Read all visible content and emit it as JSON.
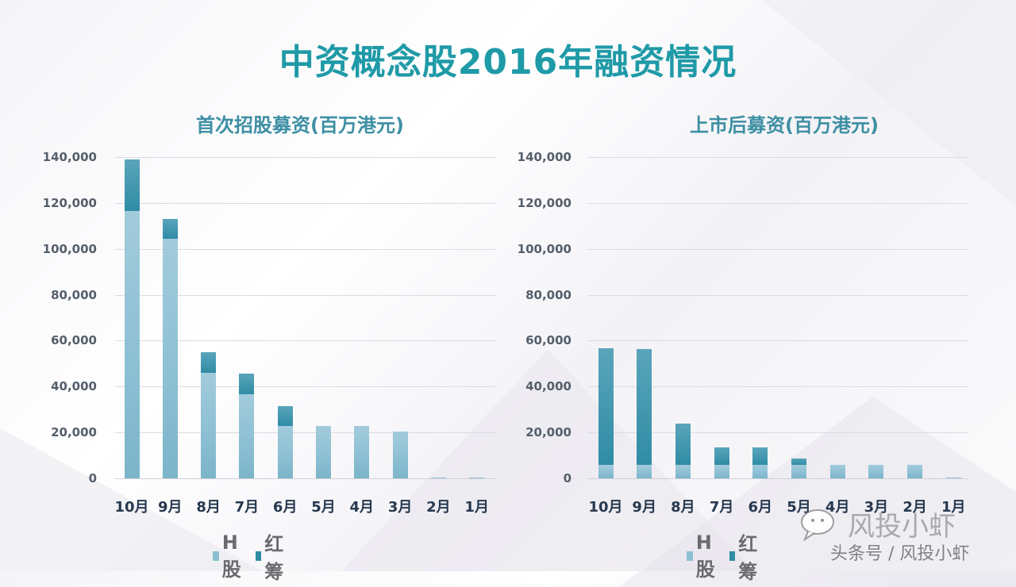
{
  "title": "中资概念股2016年融资情况",
  "colors": {
    "title": "#1f9aa7",
    "subtitle": "#3d8fa3",
    "h_share": "#8cbfd3",
    "red_chip": "#2f8ca5"
  },
  "legend": {
    "h_share": "H股",
    "red_chip": "红筹"
  },
  "watermark": {
    "name": "风投小虾",
    "sub": "头条号 / 风投小虾",
    "icon": "wechat-icon"
  },
  "y_ticks": [
    "140,000",
    "120,000",
    "100,000",
    "80,000",
    "60,000",
    "40,000",
    "20,000",
    "0"
  ],
  "chart_data": [
    {
      "type": "bar",
      "stacked": true,
      "title": "首次招股募资(百万港元)",
      "xlabel": "",
      "ylabel": "",
      "categories": [
        "10月",
        "9月",
        "8月",
        "7月",
        "6月",
        "5月",
        "4月",
        "3月",
        "2月",
        "1月"
      ],
      "series": [
        {
          "name": "H股",
          "values": [
            116500,
            104500,
            46000,
            36600,
            22800,
            22800,
            22800,
            20400,
            300,
            300
          ]
        },
        {
          "name": "红筹",
          "values": [
            22500,
            8500,
            9000,
            9000,
            8700,
            0,
            0,
            0,
            0,
            0
          ]
        }
      ],
      "ylim": [
        0,
        140000
      ],
      "yticks": [
        0,
        20000,
        40000,
        60000,
        80000,
        100000,
        120000,
        140000
      ],
      "grid": true,
      "legend_position": "bottom"
    },
    {
      "type": "bar",
      "stacked": true,
      "title": "上市后募资(百万港元)",
      "xlabel": "",
      "ylabel": "",
      "categories": [
        "10月",
        "9月",
        "8月",
        "7月",
        "6月",
        "5月",
        "4月",
        "3月",
        "2月",
        "1月"
      ],
      "series": [
        {
          "name": "H股",
          "values": [
            6000,
            6000,
            6000,
            6000,
            5800,
            5800,
            6000,
            6000,
            5800,
            300
          ]
        },
        {
          "name": "红筹",
          "values": [
            50600,
            50200,
            17800,
            7400,
            7600,
            2700,
            0,
            0,
            0,
            0
          ]
        }
      ],
      "ylim": [
        0,
        140000
      ],
      "yticks": [
        0,
        20000,
        40000,
        60000,
        80000,
        100000,
        120000,
        140000
      ],
      "grid": true,
      "legend_position": "bottom"
    }
  ]
}
